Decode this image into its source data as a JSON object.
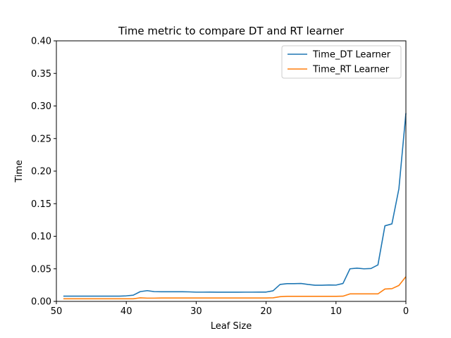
{
  "chart_data": {
    "type": "line",
    "title": "Time metric to compare DT and RT learner",
    "xlabel": "Leaf Size",
    "ylabel": "Time",
    "xlim": [
      50,
      0
    ],
    "ylim": [
      0,
      0.4
    ],
    "xticks": [
      50,
      40,
      30,
      20,
      10,
      0
    ],
    "yticks": [
      0.0,
      0.05,
      0.1,
      0.15,
      0.2,
      0.25,
      0.3,
      0.35,
      0.4
    ],
    "xtick_labels": [
      "50",
      "40",
      "30",
      "20",
      "10",
      "0"
    ],
    "ytick_labels": [
      "0.00",
      "0.05",
      "0.10",
      "0.15",
      "0.20",
      "0.25",
      "0.30",
      "0.35",
      "0.40"
    ],
    "grid": false,
    "legend_position": "top-right",
    "x": [
      49,
      48,
      47,
      46,
      45,
      44,
      43,
      42,
      41,
      40,
      39,
      38,
      37,
      36,
      35,
      34,
      33,
      32,
      31,
      30,
      29,
      28,
      27,
      26,
      25,
      24,
      23,
      22,
      21,
      20,
      19,
      18,
      17,
      16,
      15,
      14,
      13,
      12,
      11,
      10,
      9,
      8,
      7,
      6,
      5,
      4,
      3,
      2,
      1,
      0
    ],
    "series": [
      {
        "name": "Time_DT Learner",
        "color": "#1f77b4",
        "values": [
          0.008,
          0.008,
          0.008,
          0.008,
          0.008,
          0.008,
          0.008,
          0.008,
          0.008,
          0.0085,
          0.0095,
          0.015,
          0.0165,
          0.015,
          0.0148,
          0.0148,
          0.0148,
          0.0148,
          0.0146,
          0.0142,
          0.0142,
          0.0143,
          0.0141,
          0.0141,
          0.0141,
          0.0141,
          0.0142,
          0.0142,
          0.0143,
          0.0143,
          0.0163,
          0.026,
          0.0272,
          0.0272,
          0.0275,
          0.026,
          0.0248,
          0.0248,
          0.0252,
          0.025,
          0.0275,
          0.05,
          0.051,
          0.05,
          0.0505,
          0.056,
          0.116,
          0.119,
          0.173,
          0.289
        ]
      },
      {
        "name": "Time_RT Learner",
        "color": "#ff7f0e",
        "values": [
          0.004,
          0.004,
          0.004,
          0.004,
          0.004,
          0.004,
          0.004,
          0.004,
          0.004,
          0.004,
          0.004,
          0.0055,
          0.005,
          0.005,
          0.0052,
          0.0052,
          0.0052,
          0.0052,
          0.0052,
          0.0052,
          0.0052,
          0.0052,
          0.0052,
          0.0052,
          0.0052,
          0.0052,
          0.0052,
          0.0052,
          0.0052,
          0.0052,
          0.0055,
          0.0072,
          0.0078,
          0.0078,
          0.0078,
          0.0078,
          0.0078,
          0.0078,
          0.0078,
          0.0078,
          0.008,
          0.0115,
          0.0115,
          0.0115,
          0.0115,
          0.0115,
          0.019,
          0.0195,
          0.0245,
          0.038
        ]
      }
    ]
  }
}
